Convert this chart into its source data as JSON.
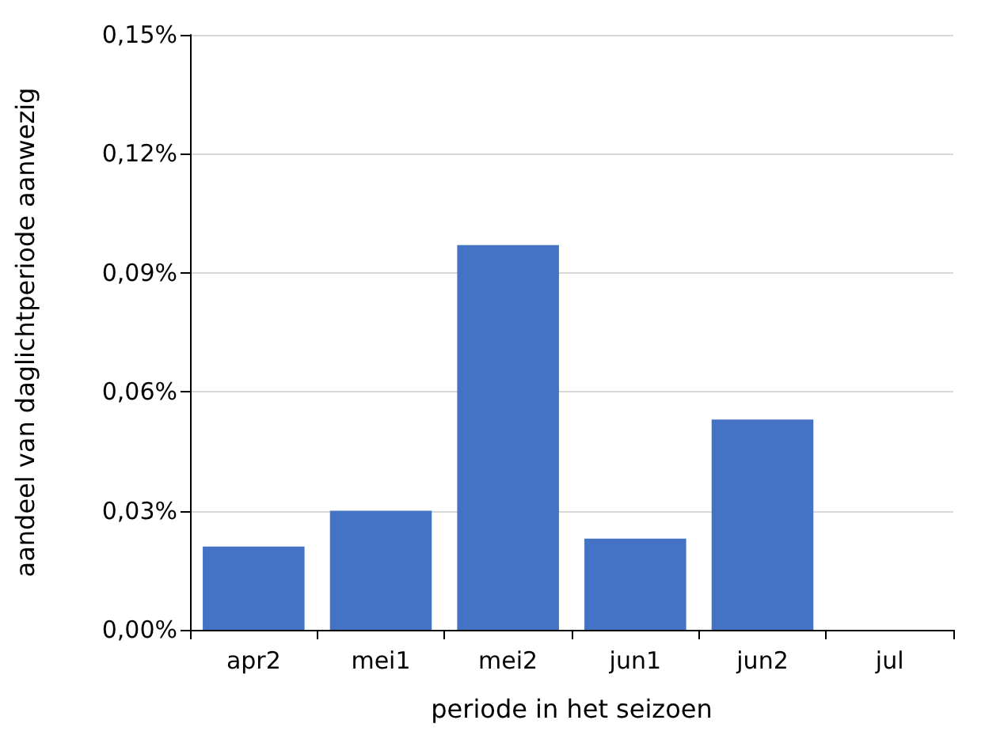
{
  "chart_data": {
    "type": "bar",
    "xlabel": "periode in het seizoen",
    "ylabel": "aandeel van daglichtperiode aanwezig",
    "categories": [
      "apr2",
      "mei1",
      "mei2",
      "jun1",
      "jun2",
      "jul"
    ],
    "values": [
      0.021,
      0.03,
      0.097,
      0.023,
      0.053,
      0
    ],
    "color": "#4472c4",
    "ylim": [
      0,
      0.15
    ],
    "yticks": [
      {
        "value": 0,
        "label": "0,00%"
      },
      {
        "value": 0.03,
        "label": "0,03%"
      },
      {
        "value": 0.06,
        "label": "0,06%"
      },
      {
        "value": 0.09,
        "label": "0,09%"
      },
      {
        "value": 0.12,
        "label": "0,12%"
      },
      {
        "value": 0.15,
        "label": "0,15%"
      }
    ],
    "grid": "y"
  }
}
